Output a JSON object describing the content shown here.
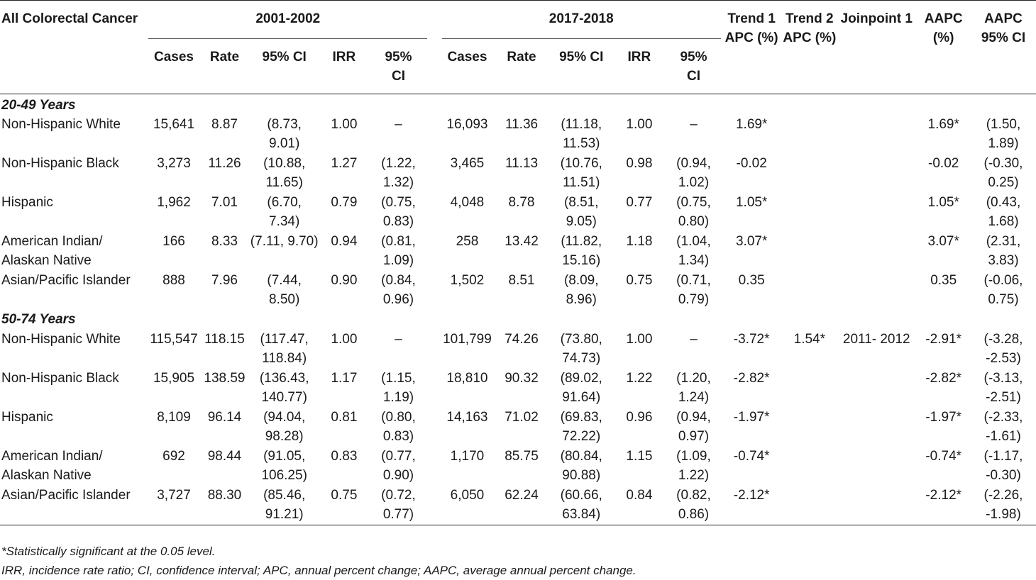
{
  "header": {
    "row_label": "All Colorectal Cancer",
    "period1": "2001-2002",
    "period2": "2017-2018",
    "trend1": "Trend 1 APC (%)",
    "trend2": "Trend 2 APC (%)",
    "joinpoint": "Joinpoint 1",
    "aapc": "AAPC (%)",
    "aapc_ci": "AAPC 95% CI",
    "sub": {
      "cases": "Cases",
      "rate": "Rate",
      "ci": "95% CI",
      "irr": "IRR",
      "irr_ci": "95% CI"
    }
  },
  "sections": [
    {
      "title": "20-49 Years",
      "rows": [
        {
          "group": "Non-Hispanic White",
          "c1": "15,641",
          "r1": "8.87",
          "ci1": "(8.73, 9.01)",
          "irr1": "1.00",
          "irrci1": "–",
          "c2": "16,093",
          "r2": "11.36",
          "ci2": "(11.18, 11.53)",
          "irr2": "1.00",
          "irrci2": "–",
          "t1": "1.69*",
          "t2": "",
          "jp": "",
          "aapc": "1.69*",
          "aapcci": "(1.50, 1.89)"
        },
        {
          "group": "Non-Hispanic Black",
          "c1": "3,273",
          "r1": "11.26",
          "ci1": "(10.88, 11.65)",
          "irr1": "1.27",
          "irrci1": "(1.22, 1.32)",
          "c2": "3,465",
          "r2": "11.13",
          "ci2": "(10.76, 11.51)",
          "irr2": "0.98",
          "irrci2": "(0.94, 1.02)",
          "t1": "-0.02",
          "t2": "",
          "jp": "",
          "aapc": "-0.02",
          "aapcci": "(-0.30, 0.25)"
        },
        {
          "group": "Hispanic",
          "c1": "1,962",
          "r1": "7.01",
          "ci1": "(6.70, 7.34)",
          "irr1": "0.79",
          "irrci1": "(0.75, 0.83)",
          "c2": "4,048",
          "r2": "8.78",
          "ci2": "(8.51, 9.05)",
          "irr2": "0.77",
          "irrci2": "(0.75, 0.80)",
          "t1": "1.05*",
          "t2": "",
          "jp": "",
          "aapc": "1.05*",
          "aapcci": "(0.43, 1.68)"
        },
        {
          "group": "American Indian/ Alaskan Native",
          "c1": "166",
          "r1": "8.33",
          "ci1": "(7.11, 9.70)",
          "irr1": "0.94",
          "irrci1": "(0.81, 1.09)",
          "c2": "258",
          "r2": "13.42",
          "ci2": "(11.82, 15.16)",
          "irr2": "1.18",
          "irrci2": "(1.04, 1.34)",
          "t1": "3.07*",
          "t2": "",
          "jp": "",
          "aapc": "3.07*",
          "aapcci": "(2.31, 3.83)"
        },
        {
          "group": "Asian/Pacific Islander",
          "c1": "888",
          "r1": "7.96",
          "ci1": "(7.44, 8.50)",
          "irr1": "0.90",
          "irrci1": "(0.84, 0.96)",
          "c2": "1,502",
          "r2": "8.51",
          "ci2": "(8.09, 8.96)",
          "irr2": "0.75",
          "irrci2": "(0.71, 0.79)",
          "t1": "0.35",
          "t2": "",
          "jp": "",
          "aapc": "0.35",
          "aapcci": "(-0.06, 0.75)"
        }
      ]
    },
    {
      "title": "50-74 Years",
      "rows": [
        {
          "group": "Non-Hispanic White",
          "c1": "115,547",
          "r1": "118.15",
          "ci1": "(117.47, 118.84)",
          "irr1": "1.00",
          "irrci1": "–",
          "c2": "101,799",
          "r2": "74.26",
          "ci2": "(73.80, 74.73)",
          "irr2": "1.00",
          "irrci2": "–",
          "t1": "-3.72*",
          "t2": "1.54*",
          "jp": "2011- 2012",
          "aapc": "-2.91*",
          "aapcci": "(-3.28, -2.53)"
        },
        {
          "group": "Non-Hispanic Black",
          "c1": "15,905",
          "r1": "138.59",
          "ci1": "(136.43, 140.77)",
          "irr1": "1.17",
          "irrci1": "(1.15, 1.19)",
          "c2": "18,810",
          "r2": "90.32",
          "ci2": "(89.02, 91.64)",
          "irr2": "1.22",
          "irrci2": "(1.20, 1.24)",
          "t1": "-2.82*",
          "t2": "",
          "jp": "",
          "aapc": "-2.82*",
          "aapcci": "(-3.13, -2.51)"
        },
        {
          "group": "Hispanic",
          "c1": "8,109",
          "r1": "96.14",
          "ci1": "(94.04, 98.28)",
          "irr1": "0.81",
          "irrci1": "(0.80, 0.83)",
          "c2": "14,163",
          "r2": "71.02",
          "ci2": "(69.83, 72.22)",
          "irr2": "0.96",
          "irrci2": "(0.94, 0.97)",
          "t1": "-1.97*",
          "t2": "",
          "jp": "",
          "aapc": "-1.97*",
          "aapcci": "(-2.33, -1.61)"
        },
        {
          "group": "American Indian/ Alaskan Native",
          "c1": "692",
          "r1": "98.44",
          "ci1": "(91.05, 106.25)",
          "irr1": "0.83",
          "irrci1": "(0.77, 0.90)",
          "c2": "1,170",
          "r2": "85.75",
          "ci2": "(80.84, 90.88)",
          "irr2": "1.15",
          "irrci2": "(1.09, 1.22)",
          "t1": "-0.74*",
          "t2": "",
          "jp": "",
          "aapc": "-0.74*",
          "aapcci": "(-1.17, -0.30)"
        },
        {
          "group": "Asian/Pacific Islander",
          "c1": "3,727",
          "r1": "88.30",
          "ci1": "(85.46, 91.21)",
          "irr1": "0.75",
          "irrci1": "(0.72, 0.77)",
          "c2": "6,050",
          "r2": "62.24",
          "ci2": "(60.66, 63.84)",
          "irr2": "0.84",
          "irrci2": "(0.82, 0.86)",
          "t1": "-2.12*",
          "t2": "",
          "jp": "",
          "aapc": "-2.12*",
          "aapcci": "(-2.26, -1.98)"
        }
      ]
    }
  ],
  "notes": {
    "significance": "*Statistically significant at the 0.05 level.",
    "abbreviations": "IRR, incidence rate ratio; CI, confidence interval; APC, annual percent change; AAPC, average annual percent change."
  }
}
